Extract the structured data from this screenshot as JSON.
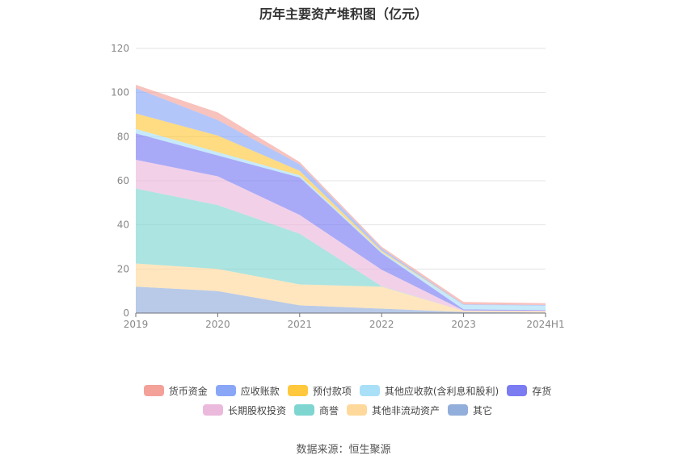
{
  "title": "历年主要资产堆积图（亿元）",
  "source": "数据来源：恒生聚源",
  "legend_rows": [
    [
      0,
      1,
      2,
      3,
      4
    ],
    [
      5,
      6,
      7,
      8
    ]
  ],
  "chart_data": {
    "type": "area",
    "stacked": true,
    "categories": [
      "2019",
      "2020",
      "2021",
      "2022",
      "2023",
      "2024H1"
    ],
    "ylim": [
      0,
      120
    ],
    "yticks": [
      0,
      20,
      40,
      60,
      80,
      100,
      120
    ],
    "grid": true,
    "legend_position": "bottom",
    "series": [
      {
        "name": "货币资金",
        "color": "#f4a19a",
        "values": [
          1.5,
          3.5,
          1.0,
          0.8,
          1.0,
          0.8
        ]
      },
      {
        "name": "应收账款",
        "color": "#8aa7f7",
        "values": [
          11.5,
          7.0,
          3.0,
          1.0,
          0.3,
          0.3
        ]
      },
      {
        "name": "预付款项",
        "color": "#ffc83d",
        "values": [
          7.0,
          7.5,
          2.0,
          0.6,
          0.0,
          0.0
        ]
      },
      {
        "name": "其他应收款(含利息和股利)",
        "color": "#a9dff7",
        "values": [
          2.0,
          1.5,
          1.0,
          0.5,
          2.0,
          2.0
        ]
      },
      {
        "name": "存货",
        "color": "#7b7cf2",
        "values": [
          12.0,
          9.5,
          17.0,
          7.5,
          0.5,
          0.4
        ]
      },
      {
        "name": "长期股权投资",
        "color": "#ebb9dc",
        "values": [
          13.0,
          13.0,
          8.5,
          7.5,
          0.2,
          0.2
        ]
      },
      {
        "name": "商誉",
        "color": "#7fd6d1",
        "values": [
          34.0,
          29.0,
          23.0,
          0.2,
          0.0,
          0.0
        ]
      },
      {
        "name": "其他非流动资产",
        "color": "#ffd99b",
        "values": [
          10.5,
          10.0,
          9.5,
          10.0,
          0.5,
          0.5
        ]
      },
      {
        "name": "其它",
        "color": "#92aedb",
        "values": [
          12.0,
          10.0,
          3.5,
          2.0,
          0.5,
          0.3
        ]
      }
    ]
  }
}
